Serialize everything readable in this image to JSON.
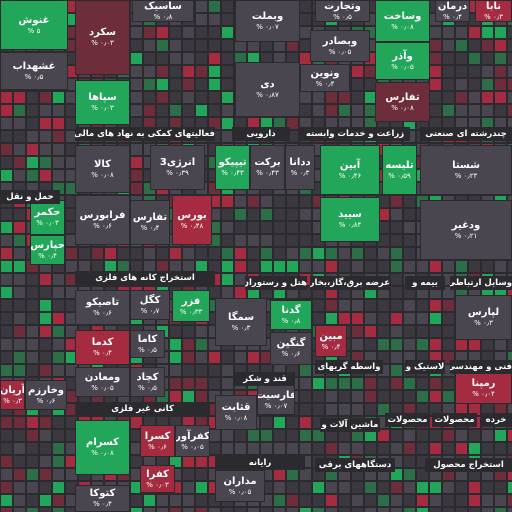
{
  "sectors": [
    "فعالیتهای کمکی به نهاد های مالی",
    "دارویی",
    "زراعت و خدمات وابسته",
    "چندرشته ای صنعتی",
    "حمل و نقل",
    "استخراج کانه های فلزی",
    "هتل و رستوران",
    "عرضه برق،گاز،بخار",
    "بیمه و",
    "وسایل ارتباطی",
    "قند و شکر",
    "واسطه گریهای",
    "لاستیک و",
    "فنی و مهندسی",
    "کانی غیر فلزی",
    "ماشین آلات و",
    "محصولات",
    "محصولات",
    "خرده",
    "رایانه",
    "دستگاههای برقی",
    "استخراج محصول"
  ],
  "tiles": [
    {
      "name": "غنوش",
      "change": "۵ %"
    },
    {
      "name": "سکرد",
      "change": "۰٫۰۳ %"
    },
    {
      "name": "ساسیک",
      "change": "۰٫۸ %"
    },
    {
      "name": "وبملت",
      "change": "۰٫۰۷ %"
    },
    {
      "name": "وتجارت",
      "change": "۰٫۵ %"
    },
    {
      "name": "وساخت",
      "change": "۰٫۰۸ %"
    },
    {
      "name": "درمان",
      "change": "۰٫۴ %"
    },
    {
      "name": "نابا",
      "change": "۰٫۳ %"
    },
    {
      "name": "غشهداب",
      "change": "۰٫۵ %"
    },
    {
      "name": "سپاها",
      "change": "۰٫۰۳ %"
    },
    {
      "name": "دی",
      "change": "۰٫۸۷ %"
    },
    {
      "name": "وبصادر",
      "change": "۰٫۰۵ %"
    },
    {
      "name": "ونوین",
      "change": "۰٫۴ %"
    },
    {
      "name": "وآذر",
      "change": "۰٫۰۵ %"
    },
    {
      "name": "تفارس",
      "change": "۰٫۰۸ %"
    },
    {
      "name": "کالا",
      "change": "۰٫۰۸ %"
    },
    {
      "name": "انرژی3",
      "change": "۰٫۳۹ %"
    },
    {
      "name": "تیپیکو",
      "change": "۰٫۴۳ %"
    },
    {
      "name": "برکت",
      "change": "۰٫۴۳ %"
    },
    {
      "name": "ددانا",
      "change": "۰٫۳ %"
    },
    {
      "name": "آبین",
      "change": "۰٫۴۶ %"
    },
    {
      "name": "تلیسه",
      "change": "۰٫۵۹ %"
    },
    {
      "name": "شستا",
      "change": "۰٫۲۳ %"
    },
    {
      "name": "فرابورس",
      "change": "۰٫۶ %"
    },
    {
      "name": "تفارس",
      "change": "۰٫۴ %"
    },
    {
      "name": "بورس",
      "change": "۰٫۴۸ %"
    },
    {
      "name": "سیید",
      "change": "۰٫۸۴ %"
    },
    {
      "name": "ودغیر",
      "change": "۰٫۲۱ %"
    },
    {
      "name": "حکمر",
      "change": "۰٫۰۳ %"
    },
    {
      "name": "حپارس",
      "change": "۰٫۴ %"
    },
    {
      "name": "تاصیکو",
      "change": "۰٫۶ %"
    },
    {
      "name": "کگل",
      "change": "۰٫۷ %"
    },
    {
      "name": "فزر",
      "change": "۰٫۳۳ %"
    },
    {
      "name": "کدما",
      "change": "۰٫۴ %"
    },
    {
      "name": "کاما",
      "change": "۰٫۵ %"
    },
    {
      "name": "ومعادن",
      "change": "۰٫۰۵ %"
    },
    {
      "name": "کچاد",
      "change": "۰٫۵ %"
    },
    {
      "name": "سمگا",
      "change": "۰٫۳ %"
    },
    {
      "name": "گدنا",
      "change": "۰٫۸ %"
    },
    {
      "name": "گنگین",
      "change": "۰٫۶ %"
    },
    {
      "name": "مبین",
      "change": "۰٫۴ %"
    },
    {
      "name": "لپارس",
      "change": "۰٫۳ %"
    },
    {
      "name": "رمپنا",
      "change": "۰٫۰۴ %"
    },
    {
      "name": "آریان",
      "change": "۰٫۳ %"
    },
    {
      "name": "وخارزم",
      "change": "۰٫۶ %"
    },
    {
      "name": "قثابت",
      "change": "۰٫۰۸ %"
    },
    {
      "name": "فارسیت",
      "change": "۰٫۰۷ %"
    },
    {
      "name": "کسرام",
      "change": "۰٫۰۸ %"
    },
    {
      "name": "کسرا",
      "change": "۰٫۶ %"
    },
    {
      "name": "کفرآور",
      "change": "۰٫۰۵ %"
    },
    {
      "name": "کفرا",
      "change": "۰٫۰۳ %"
    },
    {
      "name": "کتوکا",
      "change": "۰٫۴ %"
    },
    {
      "name": "مداران",
      "change": "۰٫۰۵ %"
    }
  ]
}
